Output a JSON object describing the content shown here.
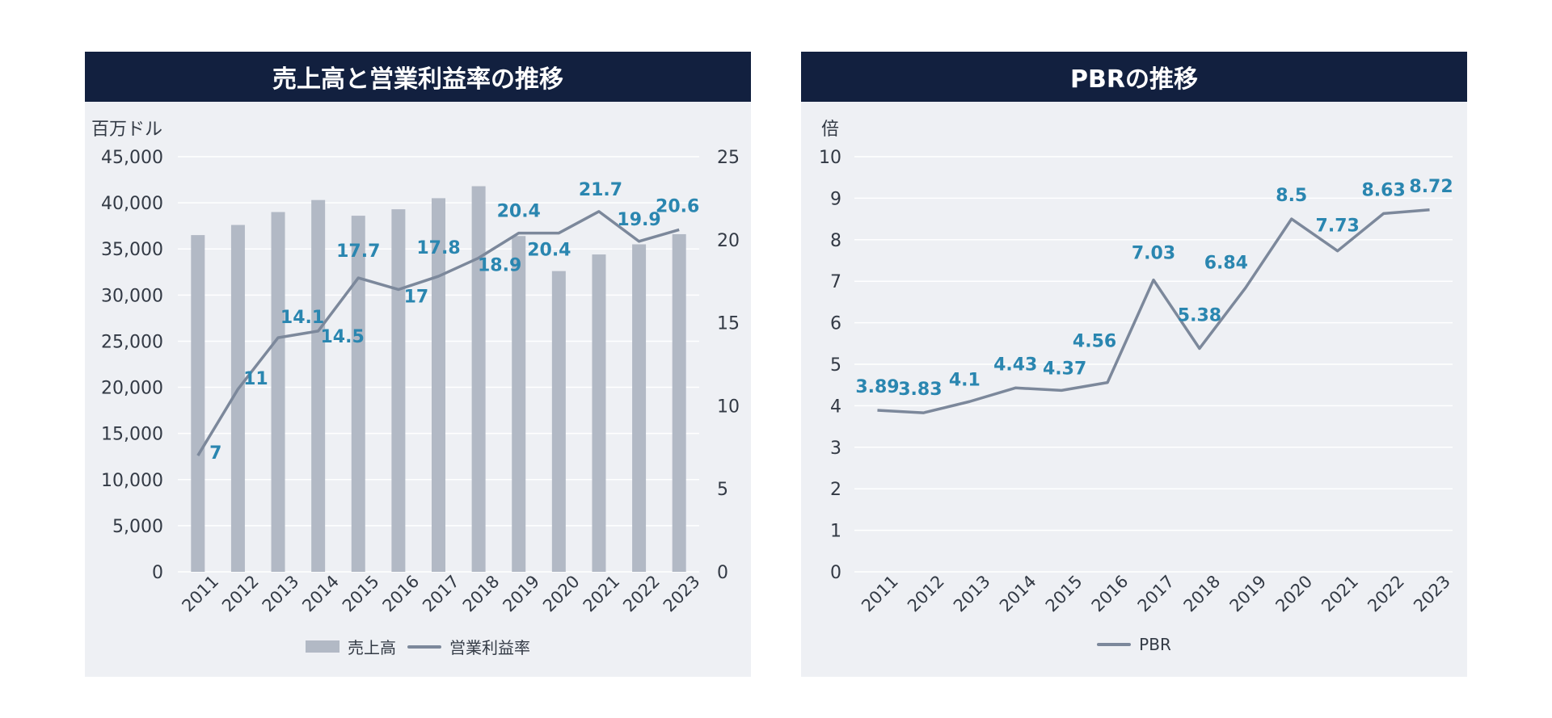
{
  "chart_data": [
    {
      "type": "bar",
      "title": "売上高と営業利益率の推移",
      "ylabel": "百万ドル",
      "categories": [
        "2011",
        "2012",
        "2013",
        "2014",
        "2015",
        "2016",
        "2017",
        "2018",
        "2019",
        "2020",
        "2021",
        "2022",
        "2023"
      ],
      "ylim": [
        0,
        45000
      ],
      "y2lim": [
        0,
        25
      ],
      "yticks": [
        "0",
        "5,000",
        "10,000",
        "15,000",
        "20,000",
        "25,000",
        "30,000",
        "35,000",
        "40,000",
        "45,000"
      ],
      "y2ticks": [
        "0",
        "5",
        "10",
        "15",
        "20",
        "25"
      ],
      "series": [
        {
          "name": "売上高",
          "kind": "bar",
          "axis": "left",
          "values": [
            36500,
            37600,
            39000,
            40300,
            38600,
            39300,
            40500,
            41800,
            36400,
            32600,
            34400,
            35500,
            36600
          ]
        },
        {
          "name": "営業利益率",
          "kind": "line",
          "axis": "right",
          "values": [
            7,
            11,
            14.1,
            14.5,
            17.7,
            17,
            17.8,
            18.9,
            20.4,
            20.4,
            21.7,
            19.9,
            20.6
          ],
          "labels": [
            "7",
            "11",
            "14.1",
            "14.5",
            "17.7",
            "17",
            "17.8",
            "18.9",
            "20.4",
            "20.4",
            "21.7",
            "19.9",
            "20.6"
          ]
        }
      ],
      "grid": true,
      "legend": "bottom"
    },
    {
      "type": "line",
      "title": "PBRの推移",
      "ylabel": "倍",
      "categories": [
        "2011",
        "2012",
        "2013",
        "2014",
        "2015",
        "2016",
        "2017",
        "2018",
        "2019",
        "2020",
        "2021",
        "2022",
        "2023"
      ],
      "ylim": [
        0,
        10
      ],
      "yticks": [
        "0",
        "1",
        "2",
        "3",
        "4",
        "5",
        "6",
        "7",
        "8",
        "9",
        "10"
      ],
      "series": [
        {
          "name": "PBR",
          "kind": "line",
          "values": [
            3.89,
            3.83,
            4.1,
            4.43,
            4.37,
            4.56,
            7.03,
            5.38,
            6.84,
            8.5,
            7.73,
            8.63,
            8.72
          ],
          "labels": [
            "3.89",
            "3.83",
            "4.1",
            "4.43",
            "4.37",
            "4.56",
            "7.03",
            "5.38",
            "6.84",
            "8.5",
            "7.73",
            "8.63",
            "8.72"
          ]
        }
      ],
      "grid": true,
      "legend": "bottom"
    }
  ],
  "colors": {
    "header_bg": "#12203f",
    "panel_bg": "#eef0f4",
    "bar": "#b2b9c5",
    "line": "#7c889b",
    "label": "#2a86b0",
    "grid": "#ffffff",
    "axis_text": "#333a45"
  }
}
